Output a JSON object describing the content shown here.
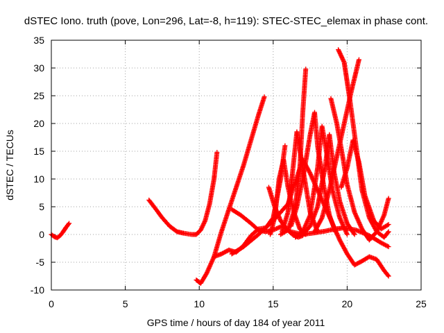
{
  "chart_data": {
    "type": "scatter",
    "title": "dSTEC Iono. truth (pove, Lon=296, Lat=-8, h=119): STEC-STEC_elemax in phase cont.",
    "xlabel": "GPS time / hours of day 184 of year 2011",
    "ylabel": "dSTEC  / TECUs",
    "xlim": [
      0,
      25
    ],
    "ylim": [
      -10,
      35
    ],
    "xticks": [
      "0",
      "5",
      "10",
      "15",
      "20",
      "25"
    ],
    "yticks": [
      "-10",
      "-5",
      "0",
      "5",
      "10",
      "15",
      "20",
      "25",
      "30",
      "35"
    ],
    "grid": true,
    "legend": "none",
    "marker": "plus",
    "color": "#ff0000",
    "series": [
      {
        "x": [
          0,
          0.2,
          0.4,
          0.6,
          0.8,
          1.0,
          1.2
        ],
        "y": [
          0,
          -0.4,
          -0.6,
          -0.2,
          0.5,
          1.3,
          2.0
        ]
      },
      {
        "x": [
          6.6,
          7.0,
          7.5,
          8.0,
          8.5,
          9.0,
          9.5,
          9.8,
          10.1,
          10.4,
          10.7,
          11.0,
          11.2
        ],
        "y": [
          6.2,
          4.8,
          3.0,
          1.5,
          0.5,
          0.2,
          0.0,
          0.0,
          0.8,
          2.5,
          5.5,
          10.0,
          14.8
        ]
      },
      {
        "x": [
          9.8,
          10.1,
          10.5,
          11.0,
          11.5,
          12.0,
          12.5,
          13.0,
          13.5,
          14.0,
          14.4
        ],
        "y": [
          -8.2,
          -8.8,
          -7.0,
          -4.0,
          0.5,
          4.5,
          8.5,
          12.5,
          17.0,
          21.5,
          24.8
        ]
      },
      {
        "x": [
          11.0,
          11.5,
          12.0,
          12.5,
          13.0,
          13.5,
          14.0,
          14.5,
          15.0,
          15.5,
          15.8
        ],
        "y": [
          -4.0,
          -3.5,
          -2.8,
          -3.2,
          -2.0,
          -0.2,
          1.0,
          1.2,
          3.0,
          10.0,
          16.0
        ]
      },
      {
        "x": [
          12.2,
          12.8,
          13.5,
          14.0,
          14.5,
          15.0,
          15.6,
          16.2,
          17.0,
          17.8,
          18.5,
          19.2,
          19.8,
          20.6,
          21.5,
          22.3,
          22.8
        ],
        "y": [
          4.5,
          3.5,
          2.0,
          0.8,
          0.5,
          0.8,
          1.5,
          0.5,
          0.0,
          0.3,
          0.6,
          1.0,
          1.2,
          0.8,
          -0.2,
          -1.5,
          -2.2
        ]
      },
      {
        "x": [
          12.2,
          13.0,
          14.0,
          15.0,
          16.0,
          16.5,
          17.0,
          17.5,
          18.0,
          18.5,
          19.0,
          19.5,
          20.0,
          20.5,
          21.0,
          21.5,
          22.0,
          22.5,
          22.8
        ],
        "y": [
          -3.5,
          -2.2,
          0.0,
          2.5,
          5.5,
          9.5,
          13.5,
          11.0,
          8.0,
          5.0,
          2.0,
          -1.0,
          -3.5,
          -5.5,
          -4.8,
          -4.0,
          -4.5,
          -6.5,
          -7.5
        ]
      },
      {
        "x": [
          14.7,
          15.1,
          15.5,
          15.9,
          16.3,
          16.7,
          17.0
        ],
        "y": [
          8.5,
          5.0,
          2.5,
          1.0,
          0.0,
          -0.5,
          -0.2
        ]
      },
      {
        "x": [
          14.8,
          15.1,
          15.4,
          15.7,
          16.0,
          16.4,
          16.8,
          17.2
        ],
        "y": [
          0.0,
          3.0,
          10.0,
          13.5,
          8.5,
          4.0,
          1.0,
          0.0
        ]
      },
      {
        "x": [
          15.5,
          16.0,
          16.5,
          16.8,
          17.0,
          17.2
        ],
        "y": [
          0.0,
          0.8,
          5.0,
          12.0,
          22.0,
          29.8
        ]
      },
      {
        "x": [
          15.6,
          16.0,
          16.3,
          16.6,
          17.0,
          17.5,
          18.0
        ],
        "y": [
          0.5,
          4.0,
          11.0,
          18.5,
          12.0,
          4.0,
          0.5
        ]
      },
      {
        "x": [
          16.2,
          16.6,
          17.0,
          17.5,
          17.8,
          18.0,
          18.4,
          18.8,
          19.2
        ],
        "y": [
          1.5,
          5.0,
          10.0,
          18.0,
          22.0,
          16.0,
          9.0,
          3.5,
          0.5
        ]
      },
      {
        "x": [
          16.5,
          17.0,
          17.5,
          18.0,
          18.3,
          18.6,
          19.0,
          19.5,
          20.0
        ],
        "y": [
          -0.5,
          0.5,
          3.5,
          12.0,
          19.5,
          15.0,
          8.0,
          3.0,
          0.0
        ]
      },
      {
        "x": [
          17.0,
          17.5,
          18.0,
          18.5,
          18.8,
          19.1,
          19.5,
          20.0,
          20.5
        ],
        "y": [
          0.0,
          1.5,
          5.0,
          12.0,
          18.0,
          11.5,
          6.0,
          2.0,
          0.0
        ]
      },
      {
        "x": [
          17.8,
          18.3,
          18.8,
          19.3,
          19.8,
          20.3,
          20.8
        ],
        "y": [
          0.5,
          3.0,
          8.0,
          14.0,
          20.0,
          26.0,
          31.5
        ]
      },
      {
        "x": [
          18.9,
          19.3,
          19.7,
          20.0,
          20.5,
          21.0,
          21.5,
          22.0,
          22.5,
          22.8
        ],
        "y": [
          24.5,
          20.0,
          14.0,
          9.0,
          4.0,
          1.0,
          -1.0,
          0.5,
          3.5,
          6.5
        ]
      },
      {
        "x": [
          19.4,
          19.8,
          20.2,
          20.6,
          21.0,
          21.5,
          22.0,
          22.5,
          22.8
        ],
        "y": [
          33.3,
          31.0,
          24.0,
          16.0,
          8.0,
          3.0,
          0.5,
          -0.5,
          0.5
        ]
      },
      {
        "x": [
          19.6,
          20.0,
          20.4,
          20.8,
          21.2,
          21.8,
          22.3,
          22.8
        ],
        "y": [
          8.5,
          12.0,
          17.0,
          13.0,
          7.0,
          2.5,
          1.0,
          1.8
        ]
      }
    ]
  }
}
